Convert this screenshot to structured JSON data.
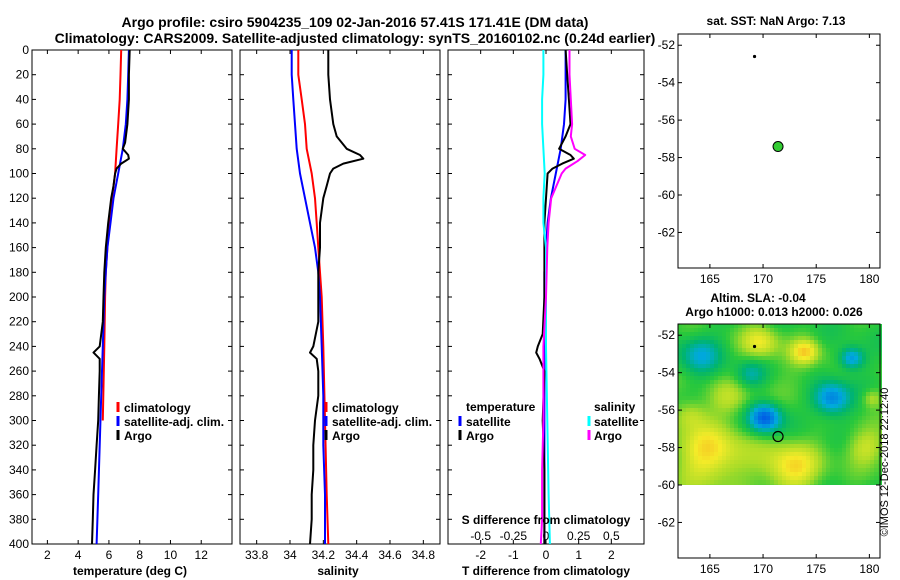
{
  "title_line1": "Argo profile: csiro 5904235_109 02-Jan-2016 57.41S 171.41E (DM data)",
  "title_line2": "Climatology: CARS2009. Satellite-adjusted climatology: synTS_20160102.nc (0.24d earlier)",
  "credit": "©IMOS 12-Dec-2018 22:12:40",
  "colors": {
    "climatology": "#ff0000",
    "satellite": "#0000ff",
    "argo": "#000000",
    "s_satellite": "#00ffff",
    "s_argo": "#ff00ff",
    "argo_marker": "#33cc33"
  },
  "chart_data": [
    {
      "id": "temperature",
      "type": "line",
      "xlabel": "temperature (deg C)",
      "ylabel": "depth",
      "xlim": [
        1,
        14
      ],
      "ylim": [
        400,
        0
      ],
      "xticks": [
        2,
        4,
        6,
        8,
        10,
        12
      ],
      "yticks": [
        0,
        20,
        40,
        60,
        80,
        100,
        120,
        140,
        160,
        180,
        200,
        220,
        240,
        260,
        280,
        300,
        320,
        340,
        360,
        380,
        400
      ],
      "legend": {
        "position": "bottom-right",
        "entries": [
          "climatology",
          "satellite-adj. clim.",
          "Argo"
        ]
      },
      "series": [
        {
          "name": "climatology",
          "color": "#ff0000",
          "depth": [
            0,
            20,
            40,
            60,
            80,
            100,
            120,
            140,
            160,
            180,
            200,
            240,
            300
          ],
          "values": [
            6.8,
            6.75,
            6.7,
            6.6,
            6.5,
            6.4,
            6.2,
            6.0,
            5.9,
            5.8,
            5.75,
            5.7,
            5.6
          ]
        },
        {
          "name": "satellite-adj. clim.",
          "color": "#0000ff",
          "depth": [
            0,
            20,
            40,
            60,
            80,
            100,
            120,
            140,
            160,
            180,
            200,
            240,
            280,
            320,
            360,
            400
          ],
          "values": [
            7.3,
            7.25,
            7.2,
            7.1,
            6.9,
            6.6,
            6.3,
            6.1,
            5.9,
            5.8,
            5.7,
            5.6,
            5.5,
            5.4,
            5.3,
            5.2
          ]
        },
        {
          "name": "Argo",
          "color": "#000000",
          "depth": [
            0,
            20,
            40,
            60,
            75,
            80,
            85,
            88,
            92,
            96,
            100,
            110,
            120,
            140,
            160,
            180,
            200,
            220,
            240,
            245,
            250,
            260,
            280,
            300,
            320,
            340,
            360,
            380,
            400
          ],
          "values": [
            7.35,
            7.3,
            7.3,
            7.2,
            7.05,
            6.9,
            7.25,
            7.3,
            6.8,
            6.5,
            6.4,
            6.3,
            6.15,
            5.95,
            5.8,
            5.7,
            5.65,
            5.6,
            5.4,
            5.0,
            5.4,
            5.4,
            5.35,
            5.3,
            5.2,
            5.1,
            5.0,
            4.95,
            4.9
          ]
        }
      ]
    },
    {
      "id": "salinity",
      "type": "line",
      "xlabel": "salinity",
      "ylabel": "depth",
      "xlim": [
        33.7,
        34.9
      ],
      "ylim": [
        400,
        0
      ],
      "xticks": [
        33.8,
        34,
        34.2,
        34.4,
        34.6,
        34.8
      ],
      "xtick_labels": [
        "33.8",
        "34",
        "34.2",
        "34.4",
        "34.6",
        "34.8"
      ],
      "legend": {
        "position": "bottom-right",
        "entries": [
          "climatology",
          "satellite-adj. clim.",
          "Argo"
        ]
      },
      "series": [
        {
          "name": "climatology",
          "color": "#ff0000",
          "depth": [
            0,
            20,
            40,
            60,
            80,
            100,
            120,
            140,
            160,
            180,
            200,
            240,
            300,
            360,
            400
          ],
          "values": [
            34.05,
            34.05,
            34.07,
            34.09,
            34.1,
            34.13,
            34.15,
            34.16,
            34.17,
            34.18,
            34.19,
            34.2,
            34.21,
            34.22,
            34.23
          ]
        },
        {
          "name": "satellite-adj. clim.",
          "color": "#0000ff",
          "depth": [
            0,
            20,
            40,
            60,
            80,
            100,
            120,
            140,
            160,
            180,
            200,
            240,
            280,
            320,
            360,
            400
          ],
          "values": [
            34.01,
            34.01,
            34.02,
            34.03,
            34.04,
            34.06,
            34.09,
            34.12,
            34.15,
            34.17,
            34.18,
            34.19,
            34.2,
            34.2,
            34.21,
            34.21
          ]
        },
        {
          "name": "Argo",
          "color": "#000000",
          "depth": [
            0,
            20,
            40,
            60,
            70,
            80,
            85,
            88,
            92,
            96,
            100,
            110,
            120,
            140,
            160,
            180,
            200,
            220,
            240,
            245,
            250,
            260,
            280,
            300,
            320,
            340,
            360,
            380,
            400
          ],
          "values": [
            34.23,
            34.23,
            34.24,
            34.26,
            34.28,
            34.34,
            34.42,
            34.44,
            34.32,
            34.26,
            34.24,
            34.22,
            34.2,
            34.18,
            34.18,
            34.17,
            34.17,
            34.17,
            34.14,
            34.12,
            34.16,
            34.17,
            34.17,
            34.15,
            34.14,
            34.14,
            34.13,
            34.13,
            34.12
          ]
        }
      ]
    },
    {
      "id": "differences",
      "type": "line",
      "xlabel": "T difference from climatology",
      "xlabel_top": "S difference from climatology",
      "ylabel": "depth",
      "xlim": [
        -3,
        3
      ],
      "ylim": [
        400,
        0
      ],
      "xticks": [
        -2,
        -1,
        0,
        1,
        2
      ],
      "xtick_labels": [
        "-2",
        "-1",
        "0",
        "1",
        "2"
      ],
      "s_ticks": [
        -0.5,
        -0.25,
        0,
        0.25,
        0.5
      ],
      "s_tick_labels": [
        "-0.5",
        "-0.25",
        "0",
        "0.25",
        "0.5"
      ],
      "legend": {
        "position": "bottom",
        "temperature_header": "temperature",
        "salinity_header": "salinity",
        "temperature_entries": [
          "satellite",
          "Argo"
        ],
        "salinity_entries": [
          "satellite",
          "Argo"
        ]
      },
      "series": [
        {
          "name": "T satellite",
          "color": "#0000ff",
          "depth": [
            0,
            20,
            40,
            60,
            80,
            100,
            120,
            140,
            160,
            180,
            200,
            240,
            300,
            360,
            400
          ],
          "values": [
            0.6,
            0.6,
            0.6,
            0.55,
            0.45,
            0.3,
            0.15,
            0.05,
            0,
            -0.05,
            -0.05,
            -0.05,
            -0.05,
            -0.05,
            -0.05
          ]
        },
        {
          "name": "T Argo",
          "color": "#000000",
          "depth": [
            0,
            20,
            40,
            60,
            70,
            80,
            85,
            88,
            92,
            96,
            100,
            120,
            140,
            160,
            200,
            230,
            240,
            245,
            250,
            260,
            300,
            340,
            380,
            400
          ],
          "values": [
            0.6,
            0.65,
            0.7,
            0.75,
            0.6,
            0.4,
            0.75,
            0.85,
            0.5,
            0.2,
            0.05,
            0.0,
            -0.05,
            -0.05,
            -0.05,
            -0.1,
            -0.25,
            -0.3,
            -0.2,
            -0.05,
            -0.1,
            -0.05,
            -0.05,
            -0.05
          ]
        },
        {
          "name": "S satellite",
          "color": "#00ffff",
          "depth": [
            0,
            20,
            40,
            60,
            80,
            100,
            120,
            140,
            160,
            200,
            240,
            300,
            360,
            400
          ],
          "values": [
            -0.02,
            -0.02,
            -0.03,
            -0.03,
            -0.02,
            -0.01,
            -0.02,
            -0.02,
            0.0,
            0.0,
            0.0,
            0.01,
            0.02,
            0.03
          ]
        },
        {
          "name": "S Argo",
          "color": "#ff00ff",
          "depth": [
            0,
            20,
            40,
            60,
            70,
            80,
            85,
            90,
            96,
            100,
            120,
            140,
            160,
            200,
            240,
            300,
            340,
            380,
            400
          ],
          "values": [
            0.18,
            0.18,
            0.19,
            0.2,
            0.19,
            0.22,
            0.3,
            0.24,
            0.15,
            0.12,
            0.04,
            0.02,
            0.01,
            0.0,
            -0.02,
            -0.02,
            -0.03,
            -0.03,
            -0.04
          ]
        }
      ]
    },
    {
      "id": "sst_map",
      "type": "scatter",
      "title": "sat. SST: NaN Argo: 7.13",
      "xlim": [
        162,
        181
      ],
      "ylim": [
        -63.9,
        -51.4
      ],
      "xticks": [
        165,
        170,
        175,
        180
      ],
      "yticks": [
        -52,
        -54,
        -56,
        -58,
        -60,
        -62
      ],
      "points": [
        {
          "name": "previous profile",
          "lon": 169.2,
          "lat": -52.6,
          "style": "dot"
        },
        {
          "name": "Argo profile",
          "lon": 171.41,
          "lat": -57.41,
          "style": "filled"
        }
      ]
    },
    {
      "id": "sla_map",
      "type": "heatmap",
      "title_line1": "Altim. SLA: -0.04",
      "title_line2": "Argo h1000: 0.013 h2000: 0.026",
      "xlim": [
        162,
        181
      ],
      "ylim": [
        -63.9,
        -51.4
      ],
      "data_lat_bottom": -60,
      "xticks": [
        165,
        170,
        175,
        180
      ],
      "yticks": [
        -52,
        -54,
        -56,
        -58,
        -60,
        -62
      ],
      "points": [
        {
          "name": "previous profile",
          "lon": 169.2,
          "lat": -52.6,
          "style": "dot"
        },
        {
          "name": "Argo profile",
          "lon": 171.41,
          "lat": -57.41,
          "style": "ring"
        }
      ]
    }
  ]
}
